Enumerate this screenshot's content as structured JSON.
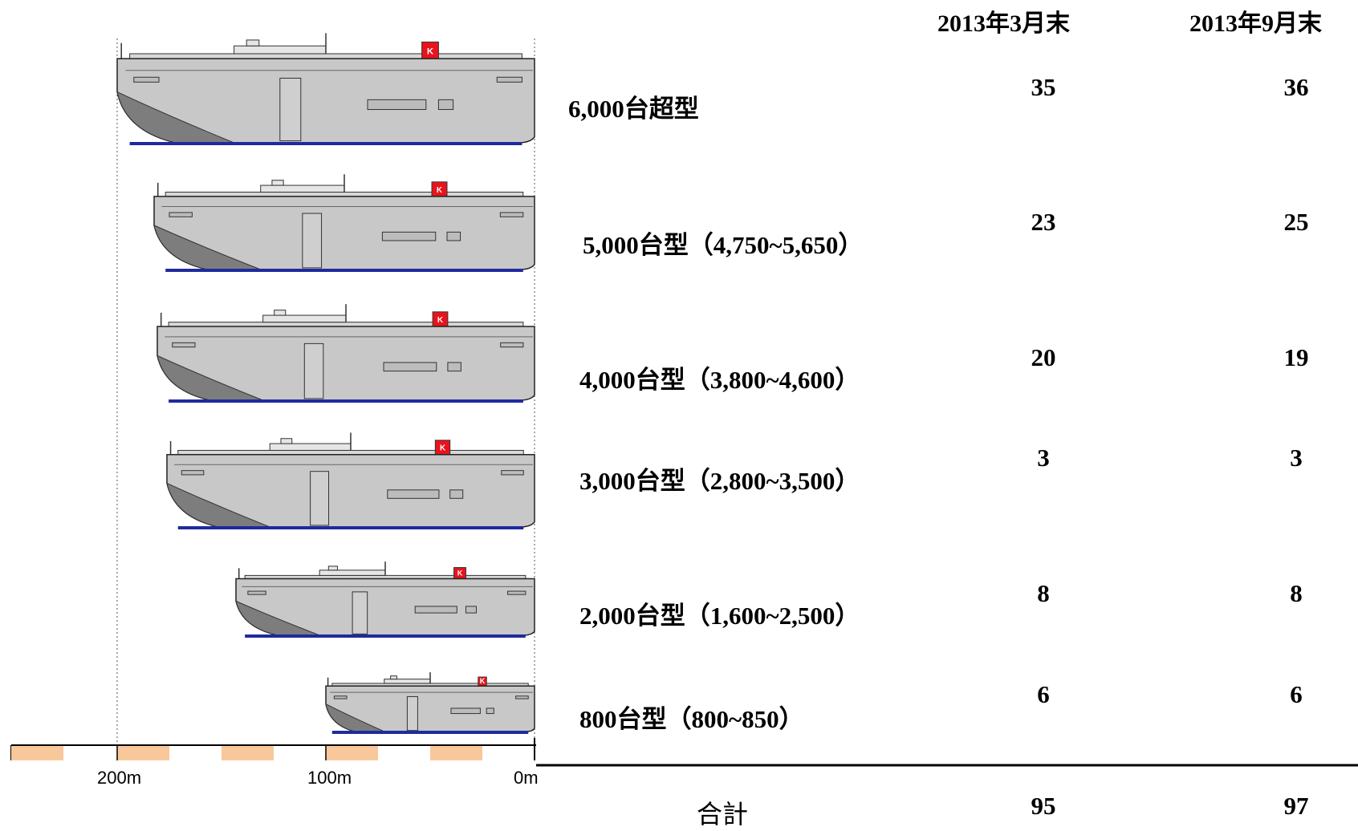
{
  "headers": {
    "col1": "2013年3月末",
    "col2": "2013年9月末"
  },
  "rows": [
    {
      "label": "6,000台超型",
      "mar": "35",
      "sep": "36"
    },
    {
      "label": "5,000台型（4,750~5,650）",
      "mar": "23",
      "sep": "25"
    },
    {
      "label": "4,000台型（3,800~4,600）",
      "mar": "20",
      "sep": "19"
    },
    {
      "label": "3,000台型（2,800~3,500）",
      "mar": "3",
      "sep": "3"
    },
    {
      "label": "2,000台型（1,600~2,500）",
      "mar": "8",
      "sep": "8"
    },
    {
      "label": "800台型（800~850）",
      "mar": "6",
      "sep": "6"
    }
  ],
  "scale": {
    "ticks": [
      "200m",
      "100m",
      "0m"
    ]
  },
  "total": {
    "label": "合計",
    "mar": "95",
    "sep": "97"
  },
  "ship": {
    "hull_color": "#c8c8c8",
    "waterline_color": "#1f2a9e",
    "funnel_color": "#e8141c",
    "funnel_letter": "K",
    "scale_fill": "#f9c89a"
  }
}
